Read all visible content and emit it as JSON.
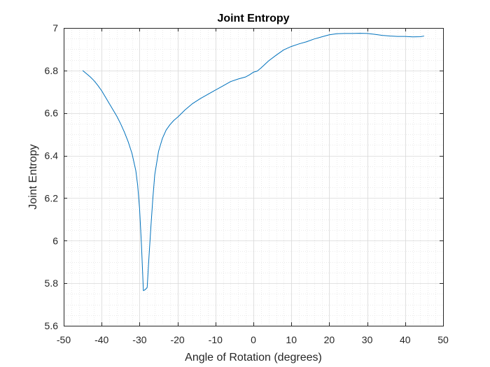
{
  "chart_data": {
    "type": "line",
    "title": "Joint Entropy",
    "xlabel": "Angle of Rotation (degrees)",
    "ylabel": "Joint Entropy",
    "xlim": [
      -50,
      50
    ],
    "ylim": [
      5.6,
      7.0
    ],
    "xticks": [
      -50,
      -40,
      -30,
      -20,
      -10,
      0,
      10,
      20,
      30,
      40,
      50
    ],
    "yticks": [
      5.6,
      5.8,
      6.0,
      6.2,
      6.4,
      6.6,
      6.8,
      7.0
    ],
    "xtick_labels": [
      "-50",
      "-40",
      "-30",
      "-20",
      "-10",
      "0",
      "10",
      "20",
      "30",
      "40",
      "50"
    ],
    "ytick_labels": [
      "5.6",
      "5.8",
      "6",
      "6.2",
      "6.4",
      "6.6",
      "6.8",
      "7"
    ],
    "grid": true,
    "minor_grid": true,
    "line_color": "#0072BD",
    "series": [
      {
        "x": [
          -45,
          -44,
          -43,
          -42,
          -41,
          -40,
          -39,
          -38,
          -37,
          -36,
          -35,
          -34,
          -33,
          -32,
          -31,
          -30.5,
          -30,
          -29.5,
          -29,
          -28.5,
          -28,
          -27.5,
          -27,
          -26.5,
          -26,
          -25,
          -24,
          -23,
          -22,
          -21,
          -20,
          -18,
          -16,
          -14,
          -12,
          -10,
          -8,
          -6,
          -4,
          -2,
          -1,
          0,
          1,
          2,
          4,
          6,
          8,
          10,
          12,
          14,
          16,
          18,
          20,
          22,
          24,
          26,
          28,
          30,
          32,
          34,
          36,
          38,
          40,
          42,
          44,
          45
        ],
        "y": [
          6.8,
          6.785,
          6.77,
          6.752,
          6.73,
          6.705,
          6.675,
          6.645,
          6.615,
          6.585,
          6.55,
          6.51,
          6.465,
          6.41,
          6.33,
          6.26,
          6.15,
          5.98,
          5.765,
          5.77,
          5.78,
          5.93,
          6.07,
          6.2,
          6.31,
          6.42,
          6.48,
          6.52,
          6.545,
          6.565,
          6.58,
          6.615,
          6.645,
          6.668,
          6.688,
          6.708,
          6.728,
          6.748,
          6.76,
          6.77,
          6.78,
          6.792,
          6.797,
          6.812,
          6.845,
          6.872,
          6.897,
          6.913,
          6.925,
          6.935,
          6.948,
          6.958,
          6.968,
          6.973,
          6.974,
          6.974,
          6.975,
          6.974,
          6.97,
          6.965,
          6.962,
          6.96,
          6.96,
          6.958,
          6.959,
          6.962
        ]
      }
    ]
  }
}
